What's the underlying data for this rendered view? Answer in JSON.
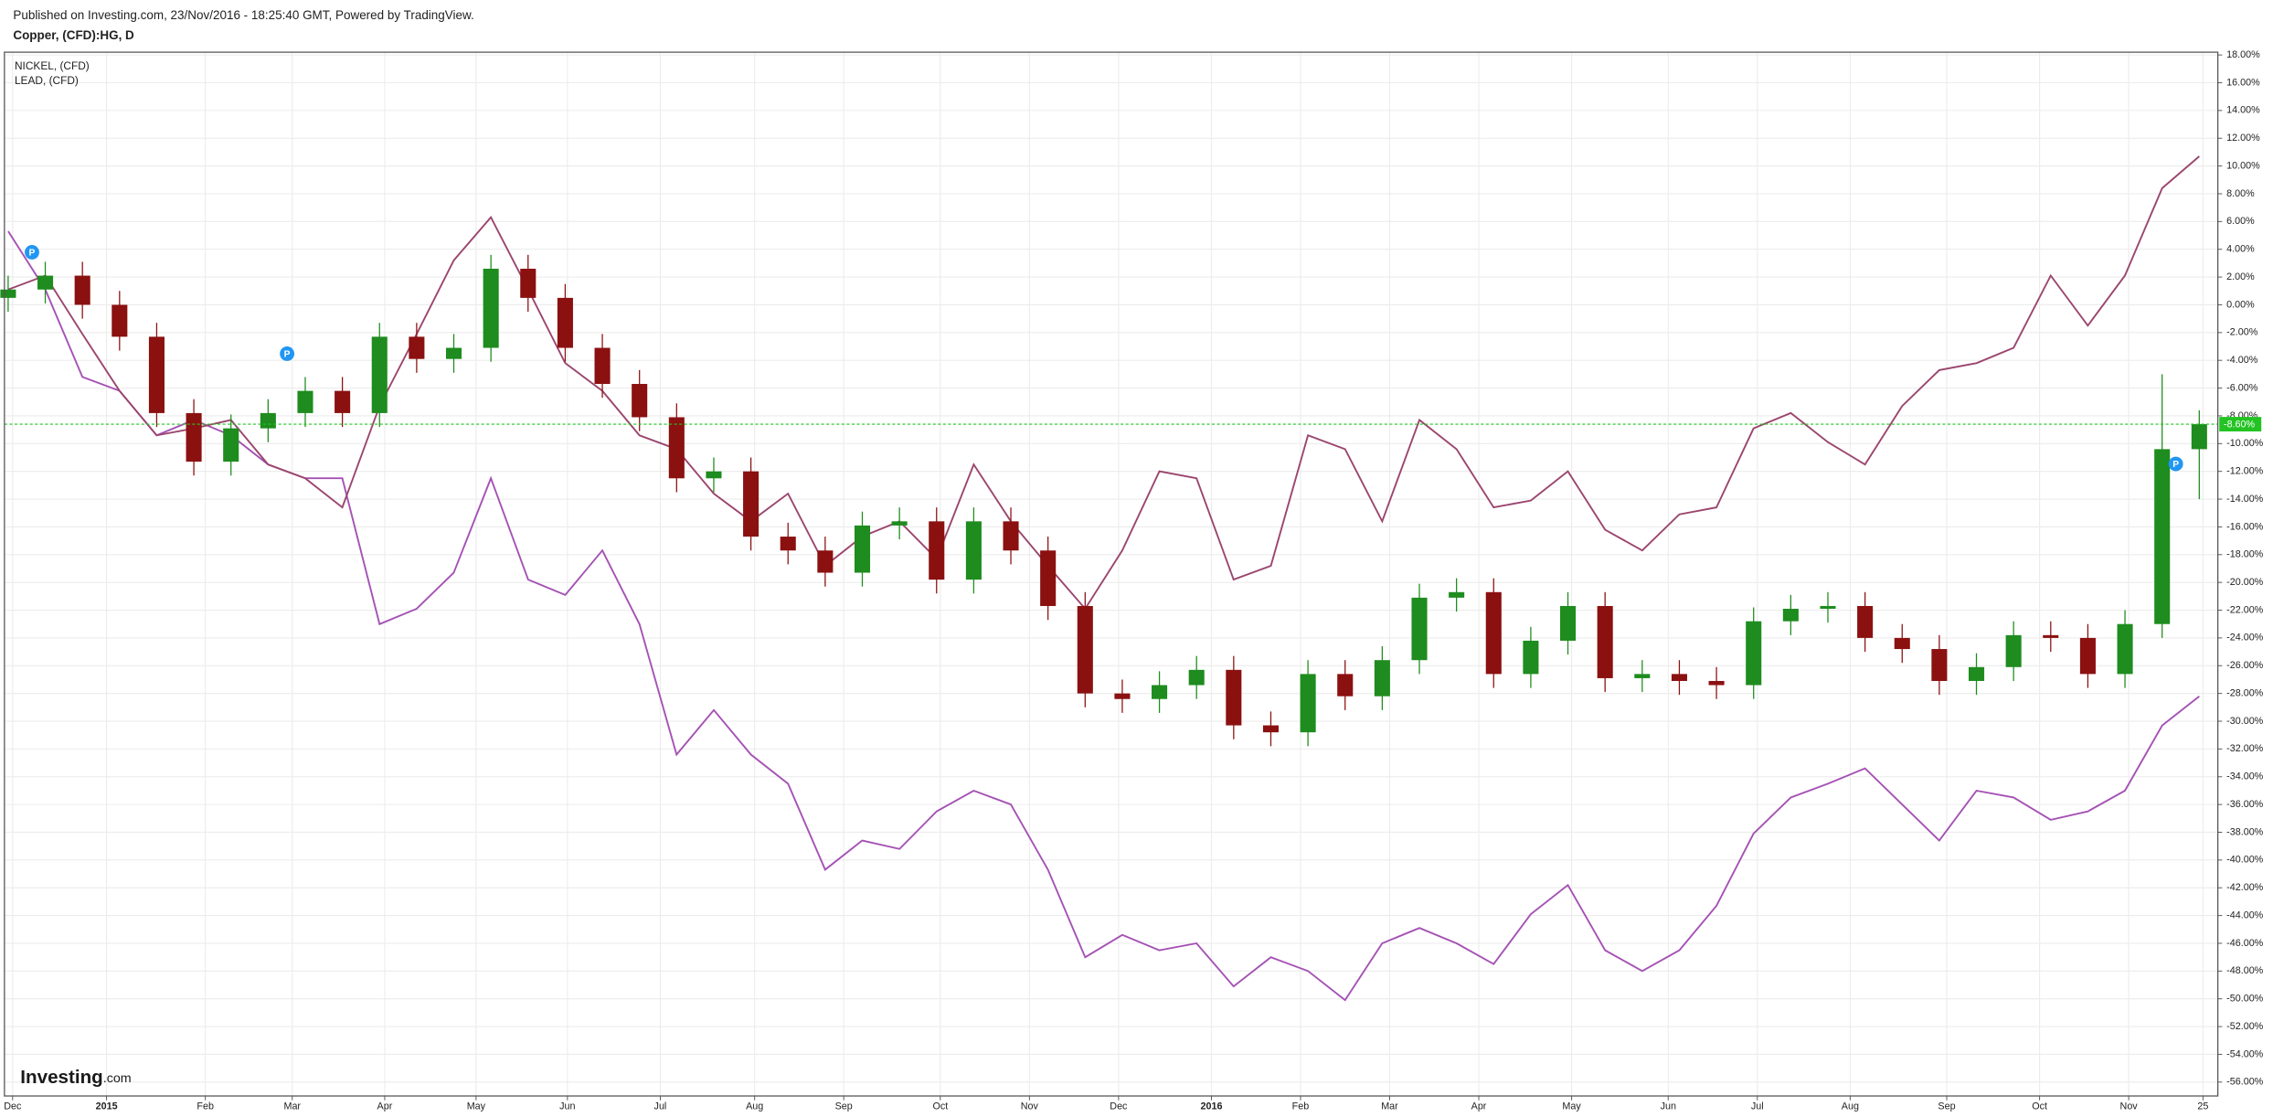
{
  "chart_data": {
    "type": "candlestick",
    "published": "Published on Investing.com, 23/Nov/2016 - 18:25:40 GMT, Powered by TradingView.",
    "title": "Copper, (CFD):HG, D",
    "logo": "Investing",
    "logo_suffix": ".com",
    "event_marker": "P",
    "last_value": -8.6,
    "last_label": "-8.60%",
    "last_color": "#22c322",
    "grid": true,
    "xlim": [
      -0.1,
      59.5
    ],
    "xticks": [
      {
        "value": 0.12,
        "label": "Dec"
      },
      {
        "value": 2.65,
        "label": "2015"
      },
      {
        "value": 5.31,
        "label": "Feb"
      },
      {
        "value": 7.65,
        "label": "Mar"
      },
      {
        "value": 10.14,
        "label": "Apr"
      },
      {
        "value": 12.6,
        "label": "May"
      },
      {
        "value": 15.06,
        "label": "Jun"
      },
      {
        "value": 17.56,
        "label": "Jul"
      },
      {
        "value": 20.1,
        "label": "Aug"
      },
      {
        "value": 22.5,
        "label": "Sep"
      },
      {
        "value": 25.1,
        "label": "Oct"
      },
      {
        "value": 27.5,
        "label": "Nov"
      },
      {
        "value": 29.9,
        "label": "Dec"
      },
      {
        "value": 32.4,
        "label": "2016"
      },
      {
        "value": 34.8,
        "label": "Feb"
      },
      {
        "value": 37.2,
        "label": "Mar"
      },
      {
        "value": 39.6,
        "label": "Apr"
      },
      {
        "value": 42.1,
        "label": "May"
      },
      {
        "value": 44.7,
        "label": "Jun"
      },
      {
        "value": 47.1,
        "label": "Jul"
      },
      {
        "value": 49.6,
        "label": "Aug"
      },
      {
        "value": 52.2,
        "label": "Sep"
      },
      {
        "value": 54.7,
        "label": "Oct"
      },
      {
        "value": 57.1,
        "label": "Nov"
      },
      {
        "value": 59.1,
        "label": "25"
      }
    ],
    "ylim": [
      -57.0,
      18.2
    ],
    "yticks": [
      {
        "value": 18,
        "label": "18.00%"
      },
      {
        "value": 16,
        "label": "16.00%"
      },
      {
        "value": 14,
        "label": "14.00%"
      },
      {
        "value": 12,
        "label": "12.00%"
      },
      {
        "value": 10,
        "label": "10.00%"
      },
      {
        "value": 8,
        "label": "8.00%"
      },
      {
        "value": 6,
        "label": "6.00%"
      },
      {
        "value": 4,
        "label": "4.00%"
      },
      {
        "value": 2,
        "label": "2.00%"
      },
      {
        "value": 0,
        "label": "0.00%"
      },
      {
        "value": -2,
        "label": "-2.00%"
      },
      {
        "value": -4,
        "label": "-4.00%"
      },
      {
        "value": -6,
        "label": "-6.00%"
      },
      {
        "value": -8,
        "label": "-8.00%"
      },
      {
        "value": -10,
        "label": "-10.00%"
      },
      {
        "value": -12,
        "label": "-12.00%"
      },
      {
        "value": -14,
        "label": "-14.00%"
      },
      {
        "value": -16,
        "label": "-16.00%"
      },
      {
        "value": -18,
        "label": "-18.00%"
      },
      {
        "value": -20,
        "label": "-20.00%"
      },
      {
        "value": -22,
        "label": "-22.00%"
      },
      {
        "value": -24,
        "label": "-24.00%"
      },
      {
        "value": -26,
        "label": "-26.00%"
      },
      {
        "value": -28,
        "label": "-28.00%"
      },
      {
        "value": -30,
        "label": "-30.00%"
      },
      {
        "value": -32,
        "label": "-32.00%"
      },
      {
        "value": -34,
        "label": "-34.00%"
      },
      {
        "value": -36,
        "label": "-36.00%"
      },
      {
        "value": -38,
        "label": "-38.00%"
      },
      {
        "value": -40,
        "label": "-40.00%"
      },
      {
        "value": -42,
        "label": "-42.00%"
      },
      {
        "value": -44,
        "label": "-44.00%"
      },
      {
        "value": -46,
        "label": "-46.00%"
      },
      {
        "value": -48,
        "label": "-48.00%"
      },
      {
        "value": -50,
        "label": "-50.00%"
      },
      {
        "value": -52,
        "label": "-52.00%"
      },
      {
        "value": -54,
        "label": "-54.00%"
      },
      {
        "value": -56,
        "label": "-56.00%"
      }
    ],
    "candles": {
      "up_color": "#1e8c1e",
      "down_color": "#8b1010",
      "open": [
        0.5,
        1.1,
        2.1,
        0.0,
        -2.3,
        -7.8,
        -11.3,
        -8.9,
        -7.8,
        -6.2,
        -7.8,
        -2.3,
        -3.9,
        -3.1,
        2.6,
        0.5,
        -3.1,
        -5.7,
        -8.1,
        -12.5,
        -12.0,
        -16.7,
        -17.7,
        -19.3,
        -15.9,
        -15.6,
        -19.8,
        -15.6,
        -17.7,
        -21.7,
        -28.0,
        -28.4,
        -27.4,
        -26.3,
        -30.3,
        -30.8,
        -26.6,
        -28.2,
        -25.6,
        -21.1,
        -20.7,
        -26.6,
        -24.2,
        -21.7,
        -26.9,
        -26.6,
        -27.1,
        -27.4,
        -22.8,
        -21.9,
        -21.7,
        -24.0,
        -24.8,
        -27.1,
        -26.1,
        -23.8,
        -24.0,
        -26.6,
        -23.0,
        -10.4
      ],
      "high": [
        2.1,
        3.1,
        3.1,
        1.0,
        -1.3,
        -6.8,
        -7.9,
        -6.8,
        -5.2,
        -5.2,
        -1.3,
        -1.3,
        -2.1,
        3.6,
        3.6,
        1.5,
        -2.1,
        -4.7,
        -7.1,
        -11.0,
        -11.0,
        -15.7,
        -16.7,
        -14.9,
        -14.6,
        -14.6,
        -14.6,
        -14.6,
        -16.7,
        -20.7,
        -27.0,
        -26.4,
        -25.3,
        -25.3,
        -29.3,
        -25.6,
        -25.6,
        -24.6,
        -20.1,
        -19.7,
        -19.7,
        -23.2,
        -20.7,
        -20.7,
        -25.6,
        -25.6,
        -26.1,
        -21.8,
        -20.9,
        -20.7,
        -20.7,
        -23.0,
        -23.8,
        -25.1,
        -22.8,
        -22.8,
        -23.0,
        -22.0,
        -5.0,
        -7.6
      ],
      "low": [
        -0.5,
        0.1,
        -1.0,
        -3.3,
        -8.8,
        -12.3,
        -12.3,
        -9.9,
        -8.8,
        -8.8,
        -8.8,
        -4.9,
        -4.9,
        -4.1,
        -0.5,
        -4.1,
        -6.7,
        -9.1,
        -13.5,
        -13.5,
        -17.7,
        -18.7,
        -20.3,
        -20.3,
        -16.9,
        -20.8,
        -20.8,
        -18.7,
        -22.7,
        -29.0,
        -29.4,
        -29.4,
        -28.4,
        -31.3,
        -31.8,
        -31.8,
        -29.2,
        -29.2,
        -26.6,
        -22.1,
        -27.6,
        -27.6,
        -25.2,
        -27.9,
        -27.9,
        -28.1,
        -28.4,
        -28.4,
        -23.8,
        -22.9,
        -25.0,
        -25.8,
        -28.1,
        -28.1,
        -27.1,
        -25.0,
        -27.6,
        -27.6,
        -24.0,
        -14.0
      ],
      "close": [
        1.1,
        2.1,
        0.0,
        -2.3,
        -7.8,
        -11.3,
        -8.9,
        -7.8,
        -6.2,
        -7.8,
        -2.3,
        -3.9,
        -3.1,
        2.6,
        0.5,
        -3.1,
        -5.7,
        -8.1,
        -12.5,
        -12.0,
        -16.7,
        -17.7,
        -19.3,
        -15.9,
        -15.6,
        -19.8,
        -15.6,
        -17.7,
        -21.7,
        -28.0,
        -28.4,
        -27.4,
        -26.3,
        -30.3,
        -30.8,
        -26.6,
        -28.2,
        -25.6,
        -21.1,
        -20.7,
        -26.6,
        -24.2,
        -21.7,
        -26.9,
        -26.6,
        -27.1,
        -27.4,
        -22.8,
        -21.9,
        -21.7,
        -24.0,
        -24.8,
        -27.1,
        -26.1,
        -23.8,
        -24.0,
        -26.6,
        -23.0,
        -10.4,
        -8.6
      ]
    },
    "series": [
      {
        "name": "NICKEL,  (CFD)",
        "color": "#a552b4",
        "values": [
          5.3,
          1.1,
          -5.2,
          -6.2,
          -9.4,
          -8.3,
          -9.4,
          -11.5,
          -12.5,
          -12.5,
          -23.0,
          -21.9,
          -19.3,
          -12.5,
          -19.8,
          -20.9,
          -17.7,
          -23.0,
          -32.4,
          -29.2,
          -32.4,
          -34.5,
          -40.7,
          -38.6,
          -39.2,
          -36.5,
          -35.0,
          -36.0,
          -40.7,
          -47.0,
          -45.4,
          -46.5,
          -46.0,
          -49.1,
          -47.0,
          -48.0,
          -50.1,
          -46.0,
          -44.9,
          -46.0,
          -47.5,
          -43.9,
          -41.8,
          -46.5,
          -48.0,
          -46.5,
          -43.3,
          -38.1,
          -35.5,
          -34.5,
          -33.4,
          -36.0,
          -38.6,
          -35.0,
          -35.5,
          -37.1,
          -36.5,
          -35.0,
          -30.3,
          -28.2
        ]
      },
      {
        "name": "LEAD,  (CFD)",
        "color": "#9b466e",
        "values": [
          1.1,
          2.1,
          -2.1,
          -6.2,
          -9.4,
          -8.9,
          -8.3,
          -11.5,
          -12.5,
          -14.6,
          -7.3,
          -2.1,
          3.2,
          6.3,
          1.1,
          -4.2,
          -6.2,
          -9.4,
          -10.4,
          -13.6,
          -15.6,
          -13.6,
          -18.8,
          -16.7,
          -15.6,
          -18.3,
          -11.5,
          -15.6,
          -18.8,
          -21.9,
          -17.7,
          -12.0,
          -12.5,
          -19.8,
          -18.8,
          -9.4,
          -10.4,
          -15.6,
          -8.3,
          -10.4,
          -14.6,
          -14.1,
          -12.0,
          -16.2,
          -17.7,
          -15.1,
          -14.6,
          -8.9,
          -7.8,
          -9.9,
          -11.5,
          -7.3,
          -4.7,
          -4.2,
          -3.1,
          2.1,
          -1.5,
          2.1,
          8.4,
          10.7
        ]
      }
    ]
  }
}
